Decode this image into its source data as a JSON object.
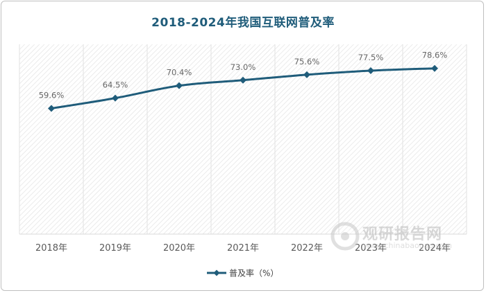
{
  "chart_data": {
    "type": "line",
    "title": "2018-2024年我国互联网普及率",
    "categories": [
      "2018年",
      "2019年",
      "2020年",
      "2021年",
      "2022年",
      "2023年",
      "2024年"
    ],
    "series": [
      {
        "name": "普及率（%）",
        "values": [
          59.6,
          64.5,
          70.4,
          73.0,
          75.6,
          77.5,
          78.6
        ],
        "data_labels": [
          "59.6%",
          "64.5%",
          "70.4%",
          "73.0%",
          "75.6%",
          "77.5%",
          "78.6%"
        ]
      }
    ],
    "ylim": [
      0,
      90
    ],
    "grid": "vertical",
    "legend": "bottom-center",
    "colors": {
      "line": "#1f5c7a",
      "title": "#1f5c7a",
      "label": "#666666",
      "hatch": "#e4e4e4"
    }
  },
  "watermark": {
    "text": "观研报告网",
    "url": "www.chinabaogao.com"
  }
}
